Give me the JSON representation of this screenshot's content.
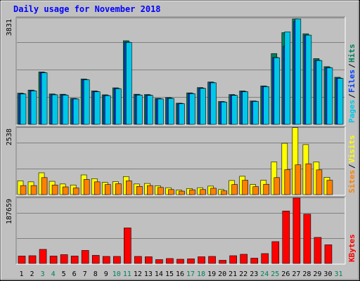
{
  "title": "Daily usage for November 2018",
  "colors": {
    "hits": "#00805c",
    "files": "#0040ff",
    "pages": "#00c8e8",
    "visits": "#ffff00",
    "sites": "#ff8000",
    "kbytes": "#ff0000",
    "title": "#0000ff",
    "weekend": "#00805c",
    "weekday": "#000000",
    "panel": "#c0c0c0"
  },
  "chart_data": [
    {
      "type": "bar",
      "panel": "hits-files-pages",
      "title": "Daily usage for November 2018",
      "categories": [
        "1",
        "2",
        "3",
        "4",
        "5",
        "6",
        "7",
        "8",
        "9",
        "10",
        "11",
        "12",
        "13",
        "14",
        "15",
        "16",
        "17",
        "18",
        "19",
        "20",
        "21",
        "22",
        "23",
        "24",
        "25",
        "26",
        "27",
        "28",
        "29",
        "30",
        "31"
      ],
      "ymax_label": "3831",
      "ylim": [
        0,
        3831
      ],
      "legend": [
        "Pages",
        "Files",
        "Hits"
      ],
      "series": [
        {
          "name": "Hits",
          "values": [
            1120,
            1230,
            1880,
            1090,
            1080,
            932,
            1627,
            1200,
            1060,
            1310,
            3000,
            1080,
            1070,
            932,
            960,
            760,
            1130,
            1320,
            1520,
            820,
            1070,
            1200,
            840,
            1380,
            2540,
            3290,
            3780,
            3250,
            2360,
            2070,
            1690
          ]
        },
        {
          "name": "Files",
          "values": [
            1100,
            1210,
            1860,
            1070,
            1060,
            920,
            1607,
            1180,
            1040,
            1290,
            2950,
            1060,
            1050,
            920,
            940,
            750,
            1110,
            1300,
            1500,
            810,
            1050,
            1180,
            830,
            1360,
            2400,
            2800,
            3700,
            3200,
            2300,
            2040,
            1660
          ]
        },
        {
          "name": "Pages",
          "values": [
            1090,
            1200,
            1850,
            1060,
            1050,
            910,
            1600,
            1170,
            1030,
            1280,
            2940,
            1050,
            1040,
            910,
            930,
            740,
            1100,
            1290,
            1490,
            800,
            1040,
            1170,
            820,
            1350,
            2390,
            3320,
            3780,
            3200,
            2290,
            2030,
            1650
          ]
        }
      ]
    },
    {
      "type": "bar",
      "panel": "visits-sites",
      "categories": [
        "1",
        "2",
        "3",
        "4",
        "5",
        "6",
        "7",
        "8",
        "9",
        "10",
        "11",
        "12",
        "13",
        "14",
        "15",
        "16",
        "17",
        "18",
        "19",
        "20",
        "21",
        "22",
        "23",
        "24",
        "25",
        "26",
        "27",
        "28",
        "29",
        "30",
        "31"
      ],
      "ymax_label": "2538",
      "ylim": [
        0,
        2538
      ],
      "legend": [
        "Sites",
        "Visits"
      ],
      "series": [
        {
          "name": "Visits",
          "values": [
            520,
            480,
            820,
            500,
            400,
            360,
            740,
            600,
            460,
            490,
            680,
            400,
            420,
            330,
            260,
            170,
            230,
            260,
            320,
            190,
            530,
            690,
            380,
            540,
            1230,
            1930,
            2520,
            1880,
            1230,
            650,
            0
          ]
        },
        {
          "name": "Sites",
          "values": [
            340,
            340,
            640,
            360,
            290,
            250,
            570,
            480,
            380,
            410,
            520,
            310,
            340,
            270,
            190,
            130,
            180,
            190,
            240,
            140,
            380,
            540,
            300,
            390,
            640,
            940,
            1120,
            1160,
            930,
            540,
            0
          ]
        }
      ]
    },
    {
      "type": "bar",
      "panel": "kbytes",
      "categories": [
        "1",
        "2",
        "3",
        "4",
        "5",
        "6",
        "7",
        "8",
        "9",
        "10",
        "11",
        "12",
        "13",
        "14",
        "15",
        "16",
        "17",
        "18",
        "19",
        "20",
        "21",
        "22",
        "23",
        "24",
        "25",
        "26",
        "27",
        "28",
        "29",
        "30",
        "31"
      ],
      "ymax_label": "187659",
      "ylim": [
        0,
        187659
      ],
      "legend": [
        "KBytes"
      ],
      "series": [
        {
          "name": "KBytes",
          "values": [
            21000,
            22000,
            40000,
            21000,
            25000,
            21000,
            37000,
            23000,
            20000,
            20000,
            101000,
            20000,
            19000,
            11000,
            14000,
            12000,
            13000,
            19000,
            20000,
            9000,
            22000,
            26000,
            15000,
            28000,
            62000,
            149000,
            186000,
            140000,
            74000,
            53000,
            0
          ]
        }
      ]
    }
  ]
}
